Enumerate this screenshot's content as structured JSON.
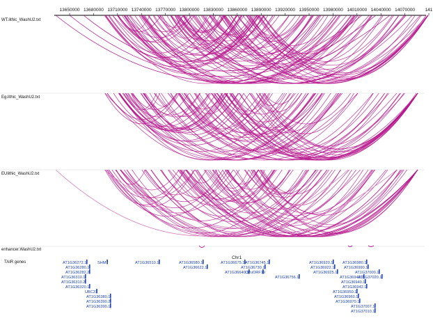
{
  "ruler": {
    "ticks": [
      "13650000",
      "13680000",
      "13710000",
      "13740000",
      "13770000",
      "13800000",
      "13830000",
      "13860000",
      "13890000",
      "13920000",
      "13950000",
      "13980000",
      "14010000",
      "14040000",
      "14070000",
      "141"
    ]
  },
  "colors": {
    "arc": "#b5168c",
    "arc_faint": "#d77fbf",
    "gene": "#1a3fb0",
    "axis": "#000000"
  },
  "tracks": [
    {
      "label": "WT.lithic_WashU2.txt",
      "arc_count": 110
    },
    {
      "label": "Eg.lithic_WashU2.txt",
      "arc_count": 95
    },
    {
      "label": "EUlithic_WashU2.txt",
      "arc_count": 80
    }
  ],
  "enhancer_track": {
    "label": "enhancer.WashU2.txt"
  },
  "gene_track": {
    "label": "TAIR genes",
    "chromosome": "Chr1",
    "genes": [
      "AT1G36272.1",
      "SHM7",
      "AT1G36280.1",
      "AT1G36282.2",
      "AT1G36310.1",
      "AT1G36310.2",
      "AT1G36320.1",
      "UBC31",
      "AT1G36380.1",
      "AT1G36390.2",
      "AT1G36390.1",
      "AT1G36510.1",
      "AT1G36580.1",
      "AT1G36622.1",
      "AT1G36675.1",
      "AT1G36640.1",
      "AT1G36745.1",
      "AT1G36730.1",
      "CPuORF19",
      "AT1G36756.1",
      "AT1G36920.1",
      "AT1G36922.1",
      "AT1G36925.1",
      "AT1G36940.2",
      "AT1G36940.1",
      "AT1G36942.1",
      "AT1G36950.1",
      "AT1G36960.1",
      "AT1G36970.1",
      "AT1G36980.1",
      "AT1G36990.1",
      "AT1G37000.1",
      "AT1G37020.1",
      "AT1G37007.1",
      "AT1G37010.1"
    ]
  }
}
